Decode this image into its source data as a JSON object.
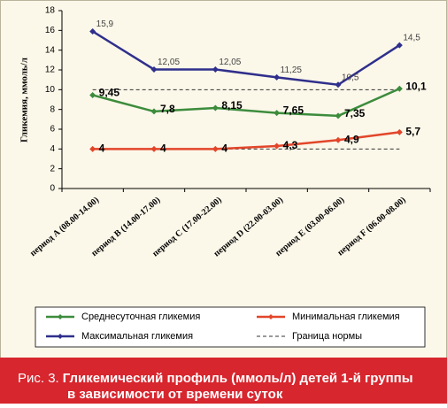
{
  "chart_data": {
    "type": "line",
    "y_label": "Гликемия, ммоль/л",
    "categories": [
      "период A (08.00-14.00)",
      "период B (14.00-17.00)",
      "период C (17.00-22.00)",
      "период D (22.00-03.00)",
      "период E (03.00-06.00)",
      "период F (06.00-08.00)"
    ],
    "series": [
      {
        "name": "Среднесуточная гликемия",
        "color": "#3c8c3c",
        "values": [
          9.45,
          7.8,
          8.15,
          7.65,
          7.35,
          10.1
        ],
        "value_labels": [
          "9,45",
          "7,8",
          "8,15",
          "7,65",
          "7,35",
          "10,1"
        ]
      },
      {
        "name": "Минимальная гликемия",
        "color": "#e2462a",
        "values": [
          4,
          4,
          4,
          4.3,
          4.9,
          5.7
        ],
        "value_labels": [
          "4",
          "4",
          "4",
          "4,3",
          "4,9",
          "5,7"
        ]
      },
      {
        "name": "Максимальная гликемия",
        "color": "#2f2f8c",
        "values": [
          15.9,
          12.05,
          12.05,
          11.25,
          10.5,
          14.5
        ],
        "value_labels": [
          "15,9",
          "12,05",
          "12,05",
          "11,25",
          "10,5",
          "14,5"
        ]
      }
    ],
    "norm": {
      "name": "Граница нормы",
      "color": "#333333",
      "levels": [
        10,
        4
      ]
    },
    "ylim": [
      0,
      18
    ],
    "yticks": [
      0,
      2,
      4,
      6,
      8,
      10,
      12,
      14,
      16,
      18
    ],
    "caption_label": "Рис. 3.",
    "caption_lines": [
      "Гликемический профиль (ммоль/л) детей 1-й группы",
      "в зависимости от времени суток"
    ]
  }
}
